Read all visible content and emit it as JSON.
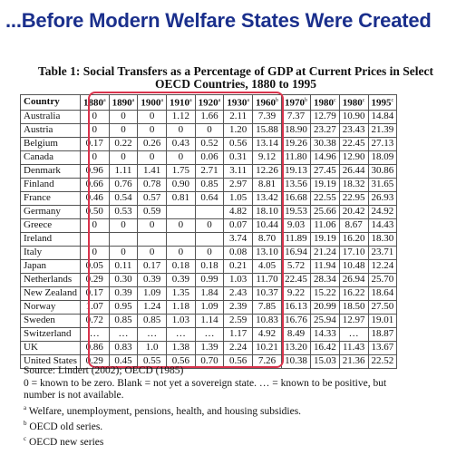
{
  "headline": "...Before Modern Welfare States Were Created",
  "table_title_line1": "Table 1: Social Transfers as a Percentage of GDP at Current Prices in Select",
  "table_title_line2": "OECD Countries, 1880 to 1995",
  "columns": [
    {
      "label": "Country",
      "sup": ""
    },
    {
      "label": "1880",
      "sup": "a"
    },
    {
      "label": "1890",
      "sup": "a"
    },
    {
      "label": "1900",
      "sup": "a"
    },
    {
      "label": "1910",
      "sup": "a"
    },
    {
      "label": "1920",
      "sup": "a"
    },
    {
      "label": "1930",
      "sup": "a"
    },
    {
      "label": "1960",
      "sup": "b"
    },
    {
      "label": "1970",
      "sup": "b"
    },
    {
      "label": "1980",
      "sup": "c"
    },
    {
      "label": "1980",
      "sup": "c"
    },
    {
      "label": "1995",
      "sup": "c"
    }
  ],
  "rows": [
    [
      "Australia",
      "0",
      "0",
      "0",
      "1.12",
      "1.66",
      "2.11",
      "7.39",
      "7.37",
      "12.79",
      "10.90",
      "14.84"
    ],
    [
      "Austria",
      "0",
      "0",
      "0",
      "0",
      "0",
      "1.20",
      "15.88",
      "18.90",
      "23.27",
      "23.43",
      "21.39"
    ],
    [
      "Belgium",
      "0.17",
      "0.22",
      "0.26",
      "0.43",
      "0.52",
      "0.56",
      "13.14",
      "19.26",
      "30.38",
      "22.45",
      "27.13"
    ],
    [
      "Canada",
      "0",
      "0",
      "0",
      "0",
      "0.06",
      "0.31",
      "9.12",
      "11.80",
      "14.96",
      "12.90",
      "18.09"
    ],
    [
      "Denmark",
      "0.96",
      "1.11",
      "1.41",
      "1.75",
      "2.71",
      "3.11",
      "12.26",
      "19.13",
      "27.45",
      "26.44",
      "30.86"
    ],
    [
      "Finland",
      "0.66",
      "0.76",
      "0.78",
      "0.90",
      "0.85",
      "2.97",
      "8.81",
      "13.56",
      "19.19",
      "18.32",
      "31.65"
    ],
    [
      "France",
      "0.46",
      "0.54",
      "0.57",
      "0.81",
      "0.64",
      "1.05",
      "13.42",
      "16.68",
      "22.55",
      "22.95",
      "26.93"
    ],
    [
      "Germany",
      "0.50",
      "0.53",
      "0.59",
      "",
      "",
      "4.82",
      "18.10",
      "19.53",
      "25.66",
      "20.42",
      "24.92"
    ],
    [
      "Greece",
      "0",
      "0",
      "0",
      "0",
      "0",
      "0.07",
      "10.44",
      "9.03",
      "11.06",
      "8.67",
      "14.43"
    ],
    [
      "Ireland",
      "",
      "",
      "",
      "",
      "",
      "3.74",
      "8.70",
      "11.89",
      "19.19",
      "16.20",
      "18.30"
    ],
    [
      "Italy",
      "0",
      "0",
      "0",
      "0",
      "0",
      "0.08",
      "13.10",
      "16.94",
      "21.24",
      "17.10",
      "23.71"
    ],
    [
      "Japan",
      "0.05",
      "0.11",
      "0.17",
      "0.18",
      "0.18",
      "0.21",
      "4.05",
      "5.72",
      "11.94",
      "10.48",
      "12.24"
    ],
    [
      "Netherlands",
      "0.29",
      "0.30",
      "0.39",
      "0.39",
      "0.99",
      "1.03",
      "11.70",
      "22.45",
      "28.34",
      "26.94",
      "25.70"
    ],
    [
      "New Zealand",
      "0.17",
      "0.39",
      "1.09",
      "1.35",
      "1.84",
      "2.43",
      "10.37",
      "9.22",
      "15.22",
      "16.22",
      "18.64"
    ],
    [
      "Norway",
      "1.07",
      "0.95",
      "1.24",
      "1.18",
      "1.09",
      "2.39",
      "7.85",
      "16.13",
      "20.99",
      "18.50",
      "27.50"
    ],
    [
      "Sweden",
      "0.72",
      "0.85",
      "0.85",
      "1.03",
      "1.14",
      "2.59",
      "10.83",
      "16.76",
      "25.94",
      "12.97",
      "19.01"
    ],
    [
      "Switzerland",
      "…",
      "…",
      "…",
      "…",
      "…",
      "1.17",
      "4.92",
      "8.49",
      "14.33",
      "…",
      "18.87"
    ],
    [
      "UK",
      "0.86",
      "0.83",
      "1.0",
      "1.38",
      "1.39",
      "2.24",
      "10.21",
      "13.20",
      "16.42",
      "11.43",
      "13.67"
    ],
    [
      "United States",
      "0.29",
      "0.45",
      "0.55",
      "0.56",
      "0.70",
      "0.56",
      "7.26",
      "10.38",
      "15.03",
      "21.36",
      "22.52"
    ]
  ],
  "notes": {
    "source": "Source: Lindert (2002); OECD (1985)",
    "legend_line1": "0 = known to be zero. Blank = not yet a sovereign state. … = known to be positive, but",
    "legend_line2": "number is not available.",
    "note_a_marker": "a",
    "note_a_text": "Welfare, unemployment, pensions, health, and housing subsidies.",
    "note_b_marker": "b",
    "note_b_text": "OECD old series.",
    "note_c_marker": "c",
    "note_c_text": "OECD new series"
  },
  "colors": {
    "headline": "#1a2f8c",
    "highlight_border": "#d9334c"
  }
}
